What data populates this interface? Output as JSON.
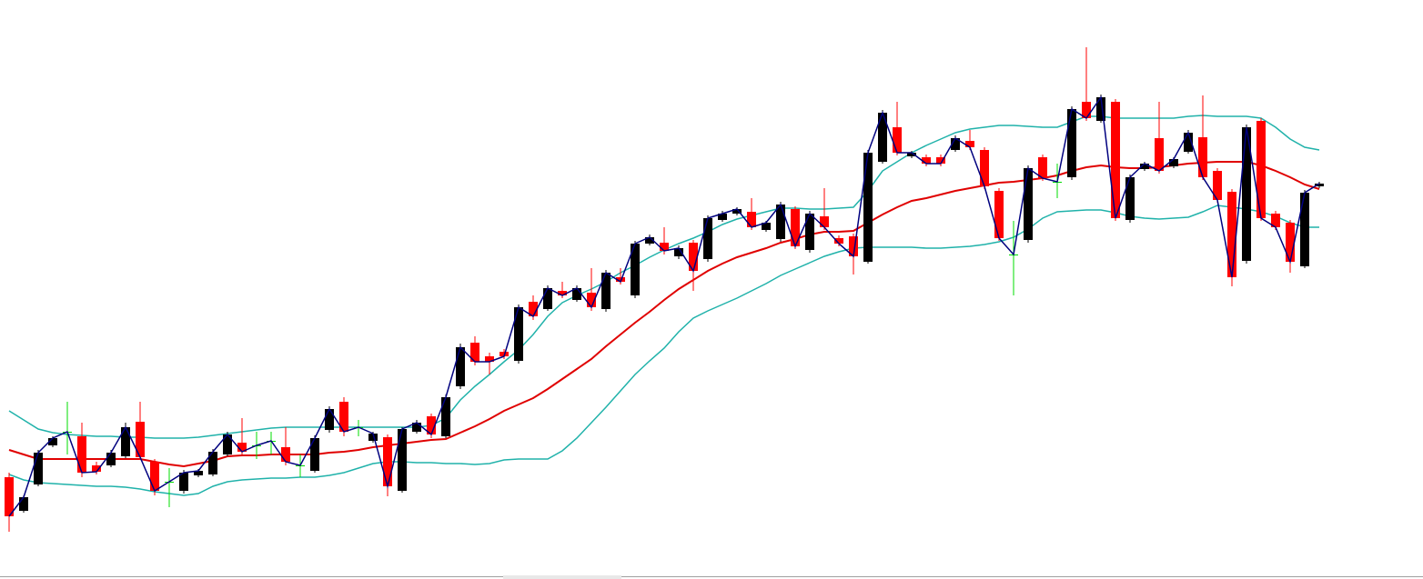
{
  "chart_data": {
    "type": "candlestick",
    "ylim": [
      0,
      640
    ],
    "up_color": "#000000",
    "down_color": "#ff0000",
    "doji_color": "#00dd00",
    "close_line_color": "#00007f",
    "open": [
      115,
      78,
      107,
      150,
      165,
      160,
      128,
      128,
      138,
      176,
      132,
      110,
      100,
      117,
      118,
      140,
      153,
      150,
      155,
      148,
      128,
      122,
      167,
      198,
      170,
      155,
      159,
      100,
      165,
      182,
      160,
      215,
      263,
      248,
      253,
      243,
      308,
      300,
      320,
      310,
      318,
      300,
      335,
      315,
      372,
      373,
      358,
      373,
      355,
      398,
      405,
      407,
      387,
      377,
      410,
      365,
      402,
      378,
      380,
      352,
      462,
      500,
      468,
      467,
      467,
      475,
      485,
      475,
      430,
      360,
      376,
      467,
      440,
      445,
      528,
      507,
      528,
      398,
      454,
      488,
      457,
      473,
      489,
      452,
      429,
      353,
      507,
      405,
      395,
      347,
      435
    ],
    "high": [
      120,
      95,
      145,
      160,
      198,
      175,
      132,
      145,
      175,
      198,
      135,
      125,
      123,
      124,
      146,
      165,
      180,
      165,
      165,
      170,
      140,
      161,
      193,
      203,
      178,
      165,
      162,
      170,
      178,
      185,
      206,
      262,
      270,
      252,
      256,
      305,
      315,
      326,
      330,
      326,
      345,
      343,
      345,
      375,
      382,
      390,
      370,
      376,
      403,
      408,
      412,
      422,
      397,
      418,
      413,
      408,
      433,
      381,
      383,
      475,
      519,
      528,
      474,
      470,
      470,
      491,
      497,
      478,
      433,
      397,
      458,
      470,
      460,
      523,
      588,
      536,
      531,
      448,
      462,
      528,
      467,
      497,
      535,
      455,
      432,
      503,
      510,
      408,
      398,
      431,
      440
    ],
    "low": [
      55,
      76,
      105,
      148,
      140,
      115,
      118,
      126,
      136,
      134,
      95,
      82,
      97,
      115,
      116,
      138,
      140,
      135,
      140,
      128,
      115,
      120,
      164,
      160,
      160,
      153,
      94,
      98,
      163,
      158,
      158,
      212,
      238,
      228,
      245,
      240,
      288,
      298,
      312,
      308,
      298,
      297,
      327,
      312,
      370,
      360,
      355,
      320,
      352,
      396,
      403,
      387,
      385,
      374,
      366,
      362,
      387,
      369,
      338,
      350,
      460,
      469,
      466,
      457,
      457,
      473,
      475,
      432,
      375,
      315,
      373,
      441,
      422,
      442,
      507,
      505,
      397,
      395,
      452,
      449,
      455,
      471,
      442,
      417,
      325,
      350,
      397,
      387,
      340,
      345,
      433
    ],
    "close": [
      72,
      93,
      142,
      158,
      165,
      120,
      121,
      142,
      170,
      137,
      100,
      110,
      120,
      122,
      143,
      162,
      143,
      150,
      155,
      132,
      128,
      158,
      190,
      165,
      170,
      163,
      105,
      168,
      175,
      162,
      203,
      258,
      242,
      242,
      248,
      302,
      292,
      323,
      315,
      323,
      302,
      340,
      330,
      372,
      379,
      364,
      367,
      342,
      400,
      405,
      410,
      390,
      395,
      415,
      369,
      405,
      390,
      372,
      358,
      472,
      516,
      472,
      472,
      460,
      460,
      488,
      478,
      435,
      378,
      360,
      455,
      444,
      440,
      520,
      510,
      533,
      400,
      445,
      460,
      452,
      465,
      494,
      445,
      420,
      335,
      500,
      400,
      390,
      352,
      428,
      438
    ],
    "series": [
      {
        "color": "#e00000",
        "values": [
          145,
          140,
          135,
          135,
          135,
          135,
          135,
          135,
          135,
          135,
          132,
          129,
          127,
          130,
          133,
          138,
          139,
          139,
          140,
          140,
          140,
          140,
          142,
          143,
          145,
          148,
          150,
          152,
          154,
          156,
          157,
          164,
          171,
          179,
          188,
          195,
          202,
          212,
          223,
          234,
          245,
          259,
          272,
          285,
          297,
          310,
          322,
          332,
          342,
          350,
          357,
          362,
          367,
          373,
          377,
          382,
          385,
          385,
          386,
          395,
          404,
          412,
          419,
          422,
          426,
          430,
          433,
          436,
          439,
          440,
          442,
          444,
          447,
          452,
          456,
          458,
          456,
          455,
          455,
          456,
          458,
          460,
          461,
          462,
          462,
          462,
          458,
          452,
          445,
          437,
          432
        ]
      },
      {
        "color": "#20b2aa",
        "values": [
          188,
          178,
          168,
          164,
          162,
          161,
          160,
          160,
          159,
          159,
          158,
          158,
          158,
          159,
          161,
          163,
          165,
          167,
          169,
          170,
          170,
          170,
          170,
          170,
          170,
          170,
          170,
          170,
          170,
          172,
          180,
          200,
          215,
          228,
          242,
          255,
          272,
          292,
          307,
          315,
          322,
          330,
          340,
          348,
          357,
          365,
          372,
          378,
          385,
          393,
          399,
          403,
          407,
          411,
          411,
          410,
          410,
          411,
          412,
          430,
          452,
          462,
          472,
          480,
          487,
          494,
          498,
          500,
          502,
          502,
          501,
          500,
          500,
          506,
          512,
          512,
          510,
          510,
          510,
          510,
          510,
          512,
          513,
          512,
          512,
          512,
          510,
          500,
          487,
          478,
          475
        ]
      },
      {
        "color": "#20b2aa",
        "values": [
          118,
          112,
          109,
          108,
          107,
          106,
          105,
          105,
          104,
          102,
          99,
          97,
          95,
          97,
          105,
          110,
          112,
          113,
          114,
          114,
          115,
          115,
          117,
          120,
          125,
          130,
          132,
          132,
          131,
          131,
          130,
          130,
          129,
          130,
          134,
          135,
          135,
          135,
          144,
          158,
          175,
          192,
          210,
          228,
          243,
          257,
          275,
          290,
          298,
          305,
          312,
          320,
          328,
          337,
          344,
          351,
          358,
          363,
          367,
          368,
          368,
          368,
          368,
          367,
          367,
          368,
          369,
          371,
          374,
          379,
          388,
          400,
          407,
          408,
          409,
          409,
          406,
          402,
          400,
          399,
          400,
          401,
          407,
          414,
          412,
          410,
          407,
          402,
          395,
          390,
          390
        ]
      }
    ]
  }
}
